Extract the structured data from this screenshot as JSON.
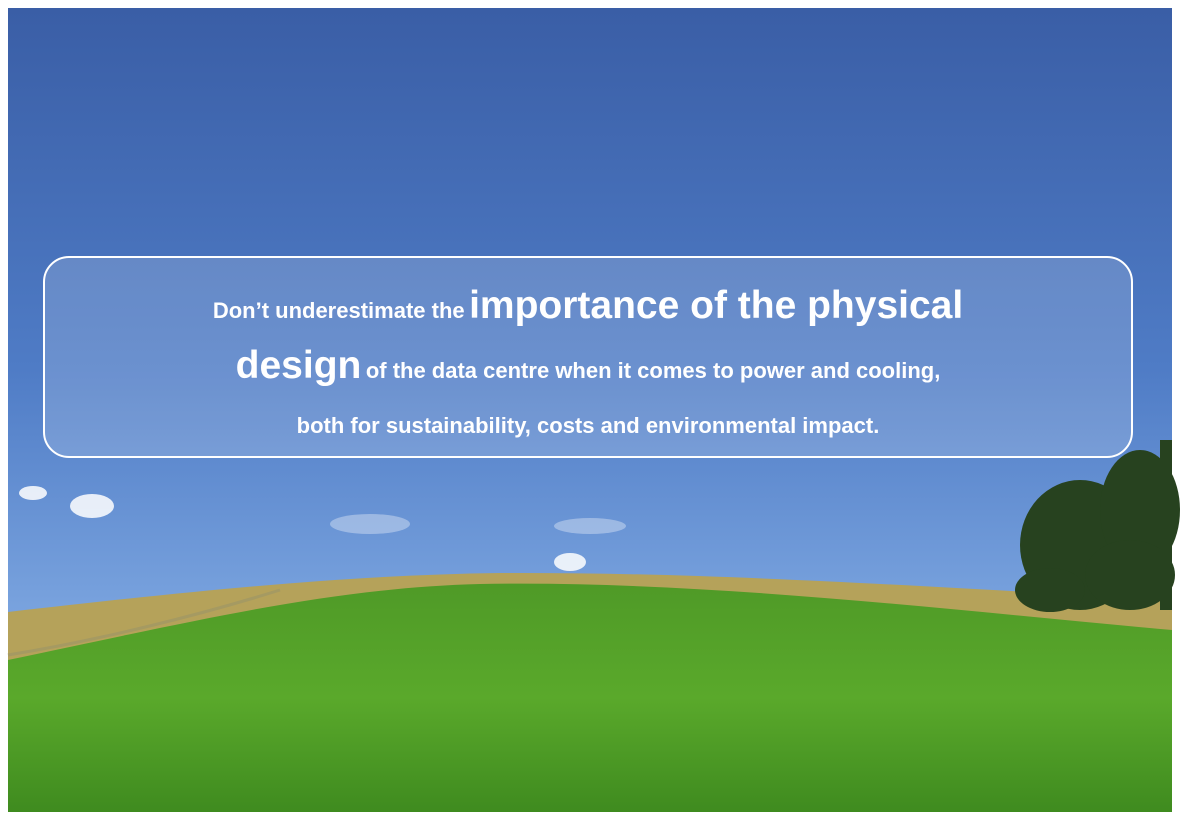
{
  "quote": {
    "parts": [
      "Don’t underestimate the",
      "importance of the physical",
      "design",
      "of the data centre when it comes to power and cooling,",
      "both for sustainability, costs and environmental impact."
    ]
  }
}
